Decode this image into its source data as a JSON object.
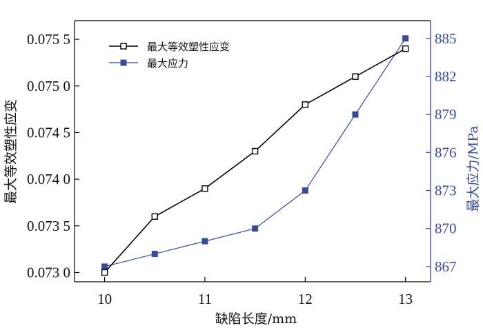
{
  "chart_data": {
    "type": "line",
    "x": [
      10,
      10.5,
      11,
      11.5,
      12,
      12.5,
      13
    ],
    "xlabel": "缺陷长度/mm",
    "xlim": [
      9.7,
      13.25
    ],
    "xticks": [
      10,
      11,
      12,
      13
    ],
    "xtick_labels": [
      "10",
      "11",
      "12",
      "13"
    ],
    "ylabel_left": "最大等效塑性应变",
    "ylim_left": [
      0.0729,
      0.0757
    ],
    "yticks_left": [
      0.073,
      0.0735,
      0.074,
      0.0745,
      0.075,
      0.0755
    ],
    "ytick_labels_left": [
      "0.073 0",
      "0.073 5",
      "0.074 0",
      "0.074 5",
      "0.075 0",
      "0.075 5"
    ],
    "ylabel_right": "最大应力/MPa",
    "ylim_right": [
      865.8,
      886.4
    ],
    "yticks_right": [
      867,
      870,
      873,
      876,
      879,
      882,
      885
    ],
    "ytick_labels_right": [
      "867",
      "870",
      "873",
      "876",
      "879",
      "882",
      "885"
    ],
    "legend_position": "top-left",
    "grid": false,
    "series": [
      {
        "name": "最大等效塑性应变",
        "axis": "left",
        "color": "#000000",
        "marker": "hollow-square",
        "values": [
          0.073,
          0.0736,
          0.0739,
          0.0743,
          0.0748,
          0.0751,
          0.0754
        ]
      },
      {
        "name": "最大应力",
        "axis": "right",
        "color": "#3a4a93",
        "marker": "filled-square",
        "values": [
          867,
          868,
          869,
          870,
          873,
          879,
          885
        ]
      }
    ]
  }
}
